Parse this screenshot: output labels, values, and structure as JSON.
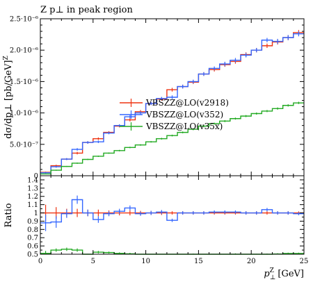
{
  "chart_data": {
    "type": "line",
    "title": "Z p⊥ in peak region",
    "xlabel_main": "p",
    "xlabel_sub": "⊥",
    "xlabel_sup": "Z",
    "xlabel_unit": "[GeV]",
    "ylabel": "dσ/dp⊥ [pb/GeV]",
    "ylabel_sup": "Z",
    "ratio_ylabel": "Ratio",
    "xlim": [
      0,
      25
    ],
    "ylim": [
      0,
      2.5e-06
    ],
    "ratio_ylim": [
      0.5,
      1.45
    ],
    "x_ticks": [
      0,
      5,
      10,
      15,
      20,
      25
    ],
    "x_tick_labels": [
      "0",
      "5",
      "10",
      "15",
      "20",
      "25"
    ],
    "y_ticks": [
      0,
      5e-07,
      1e-06,
      1.5e-06,
      2e-06,
      2.5e-06
    ],
    "y_tick_labels": [
      "0",
      "5.0·10⁻⁷",
      "1.0·10⁻⁶",
      "1.5·10⁻⁶",
      "2.0·10⁻⁶",
      "2.5·10⁻⁶"
    ],
    "ratio_ticks": [
      0.5,
      0.6,
      0.7,
      0.8,
      0.9,
      1.0,
      1.1,
      1.2,
      1.3,
      1.4
    ],
    "ratio_tick_labels": [
      "0.5",
      "0.6",
      "0.7",
      "0.8",
      "0.9",
      "1",
      "1.1",
      "1.2",
      "1.3",
      "1.4"
    ],
    "legend_placement": "center",
    "bin_edges": [
      0,
      1,
      2,
      3,
      4,
      5,
      6,
      7,
      8,
      9,
      10,
      11,
      12,
      13,
      14,
      15,
      16,
      17,
      18,
      19,
      20,
      21,
      22,
      23,
      24,
      25
    ],
    "series": [
      {
        "name": "VBSZZ@LO(v2918)",
        "color": "#ee3311",
        "values": [
          5.5e-08,
          1.6e-07,
          2.65e-07,
          3.6e-07,
          5.3e-07,
          5.9e-07,
          6.9e-07,
          7.9e-07,
          8.9e-07,
          1.02e-06,
          1.15e-06,
          1.22e-06,
          1.37e-06,
          1.42e-06,
          1.49e-06,
          1.62e-06,
          1.69e-06,
          1.77e-06,
          1.82e-06,
          1.93e-06,
          2e-06,
          2.07e-06,
          2.13e-06,
          2.2e-06,
          2.28e-06
        ],
        "errors": [
          1e-08,
          1.5e-08,
          1.5e-08,
          2e-08,
          2e-08,
          2e-08,
          2e-08,
          2e-08,
          2.5e-08,
          2.5e-08,
          2.5e-08,
          2.5e-08,
          3e-08,
          3e-08,
          3e-08,
          3e-08,
          3e-08,
          3.5e-08,
          3.5e-08,
          3.5e-08,
          3.5e-08,
          3.5e-08,
          4e-08,
          4e-08,
          4e-08
        ]
      },
      {
        "name": "VBSZZ@LO(v352)",
        "color": "#3366ff",
        "values": [
          4.8e-08,
          1.43e-07,
          2.65e-07,
          4.2e-07,
          5.3e-07,
          5.4e-07,
          6.8e-07,
          8e-07,
          9.4e-07,
          1e-06,
          1.15e-06,
          1.23e-06,
          1.25e-06,
          1.42e-06,
          1.5e-06,
          1.62e-06,
          1.71e-06,
          1.78e-06,
          1.84e-06,
          1.92e-06,
          2e-06,
          2.16e-06,
          2.14e-06,
          2.2e-06,
          2.26e-06
        ],
        "errors": [
          1e-08,
          1.5e-08,
          1.5e-08,
          2e-08,
          2e-08,
          2e-08,
          2e-08,
          2e-08,
          2.5e-08,
          2.5e-08,
          2.5e-08,
          2.5e-08,
          3e-08,
          3e-08,
          3e-08,
          3e-08,
          3e-08,
          3.5e-08,
          3.5e-08,
          3.5e-08,
          3.5e-08,
          3.5e-08,
          4e-08,
          4e-08,
          4e-08
        ]
      },
      {
        "name": "VBSZZ@LO(v35x)",
        "color": "#22aa22",
        "values": [
          2.8e-08,
          8.8e-08,
          1.48e-07,
          2e-07,
          2.6e-07,
          3.1e-07,
          3.6e-07,
          4e-07,
          4.5e-07,
          4.9e-07,
          5.4e-07,
          5.9e-07,
          6.4e-07,
          6.9e-07,
          7.4e-07,
          7.9e-07,
          8.3e-07,
          8.7e-07,
          9.1e-07,
          9.5e-07,
          9.9e-07,
          1.03e-06,
          1.07e-06,
          1.12e-06,
          1.16e-06
        ],
        "errors": [
          5e-09,
          8e-09,
          8e-09,
          1e-08,
          1e-08,
          1e-08,
          1e-08,
          1.2e-08,
          1.2e-08,
          1.2e-08,
          1.2e-08,
          1.4e-08,
          1.4e-08,
          1.4e-08,
          1.5e-08,
          1.5e-08,
          1.5e-08,
          1.6e-08,
          1.6e-08,
          1.6e-08,
          1.7e-08,
          1.7e-08,
          1.8e-08,
          1.8e-08,
          1.8e-08
        ]
      }
    ],
    "ratio_series": [
      {
        "name": "VBSZZ@LO(v2918)",
        "color": "#ee3311",
        "values": [
          1.0,
          1.0,
          1.0,
          1.0,
          1.0,
          1.0,
          1.0,
          1.0,
          1.0,
          1.0,
          1.0,
          1.0,
          1.0,
          1.0,
          1.0,
          1.0,
          1.0,
          1.0,
          1.0,
          1.0,
          1.0,
          1.0,
          1.0,
          1.0,
          1.0
        ],
        "errors": [
          0.1,
          0.07,
          0.05,
          0.05,
          0.04,
          0.04,
          0.03,
          0.03,
          0.03,
          0.025,
          0.025,
          0.025,
          0.02,
          0.02,
          0.02,
          0.02,
          0.02,
          0.02,
          0.02,
          0.02,
          0.02,
          0.02,
          0.02,
          0.02,
          0.018
        ]
      },
      {
        "name": "VBSZZ@LO(v352)",
        "color": "#3366ff",
        "values": [
          0.88,
          0.89,
          0.99,
          1.16,
          1.0,
          0.92,
          0.99,
          1.02,
          1.06,
          0.99,
          1.0,
          1.01,
          0.91,
          1.0,
          1.0,
          1.0,
          1.01,
          1.01,
          1.01,
          1.0,
          1.0,
          1.04,
          1.0,
          1.0,
          0.99
        ],
        "errors": [
          0.1,
          0.07,
          0.05,
          0.05,
          0.04,
          0.04,
          0.03,
          0.03,
          0.03,
          0.025,
          0.025,
          0.025,
          0.02,
          0.02,
          0.02,
          0.02,
          0.02,
          0.02,
          0.02,
          0.02,
          0.02,
          0.02,
          0.02,
          0.02,
          0.018
        ]
      },
      {
        "name": "VBSZZ@LO(v35x)",
        "color": "#22aa22",
        "values": [
          0.51,
          0.55,
          0.56,
          0.55,
          0.49,
          0.525,
          0.52,
          0.51,
          0.505,
          0.48,
          0.47,
          0.48,
          0.47,
          0.486,
          0.497,
          0.488,
          0.491,
          0.49,
          0.5,
          0.492,
          0.495,
          0.497,
          0.502,
          0.509,
          0.509
        ],
        "errors": [
          0.03,
          0.02,
          0.02,
          0.02,
          0.015,
          0.015,
          0.012,
          0.012,
          0.012,
          0.01,
          0.01,
          0.01,
          0.01,
          0.01,
          0.01,
          0.01,
          0.01,
          0.01,
          0.01,
          0.01,
          0.01,
          0.01,
          0.01,
          0.01,
          0.01
        ]
      }
    ]
  }
}
